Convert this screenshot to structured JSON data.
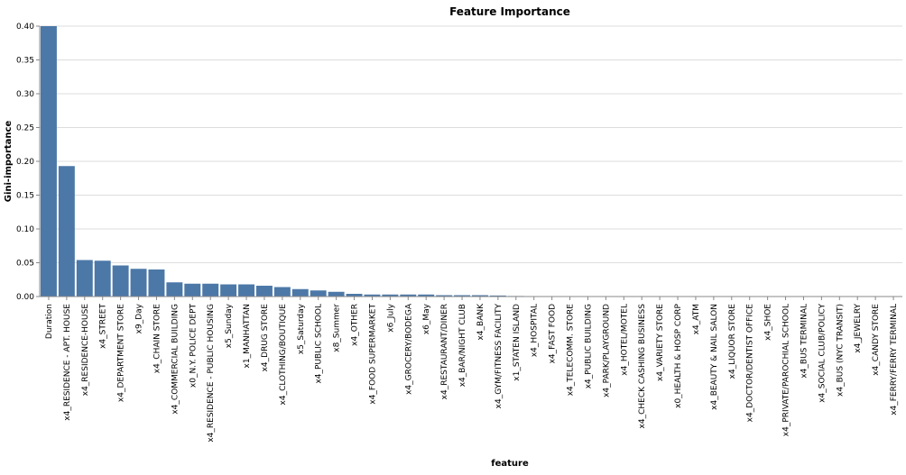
{
  "chart_data": {
    "type": "bar",
    "title": "Feature Importance",
    "xlabel": "feature",
    "ylabel": "Gini-importance",
    "ylim": [
      0,
      0.4
    ],
    "yticks": [
      "0.00",
      "0.05",
      "0.10",
      "0.15",
      "0.20",
      "0.25",
      "0.30",
      "0.35",
      "0.40"
    ],
    "grid": true,
    "bar_color": "#4c78a8",
    "categories": [
      "Duration",
      "x4_RESIDENCE - APT. HOUSE",
      "x4_RESIDENCE-HOUSE",
      "x4_STREET",
      "x4_DEPARTMENT STORE",
      "x9_Day",
      "x4_CHAIN STORE",
      "x4_COMMERCIAL BUILDING",
      "x0_N.Y. POLICE DEPT",
      "x4_RESIDENCE - PUBLIC HOUSING",
      "x5_Sunday",
      "x1_MANHATTAN",
      "x4_DRUG STORE",
      "x4_CLOTHING/BOUTIQUE",
      "x5_Saturday",
      "x4_PUBLIC SCHOOL",
      "x8_Summer",
      "x4_OTHER",
      "x4_FOOD SUPERMARKET",
      "x6_July",
      "x4_GROCERY/BODEGA",
      "x6_May",
      "x4_RESTAURANT/DINER",
      "x4_BAR/NIGHT CLUB",
      "x4_BANK",
      "x4_GYM/FITNESS FACILITY",
      "x1_STATEN ISLAND",
      "x4_HOSPITAL",
      "x4_FAST FOOD",
      "x4_TELECOMM. STORE",
      "x4_PUBLIC BUILDING",
      "x4_PARK/PLAYGROUND",
      "x4_HOTEL/MOTEL",
      "x4_CHECK CASHING BUSINESS",
      "x4_VARIETY STORE",
      "x0_HEALTH & HOSP CORP",
      "x4_ATM",
      "x4_BEAUTY & NAIL SALON",
      "x4_LIQUOR STORE",
      "x4_DOCTOR/DENTIST OFFICE",
      "x4_SHOE",
      "x4_PRIVATE/PAROCHIAL SCHOOL",
      "x4_BUS TERMINAL",
      "x4_SOCIAL CLUB/POLICY",
      "x4_BUS (NYC TRANSIT)",
      "x4_JEWELRY",
      "x4_CANDY STORE",
      "x4_FERRY/FERRY TERMINAL"
    ],
    "values": [
      0.4,
      0.193,
      0.054,
      0.053,
      0.046,
      0.041,
      0.04,
      0.021,
      0.019,
      0.019,
      0.018,
      0.018,
      0.016,
      0.014,
      0.011,
      0.009,
      0.007,
      0.004,
      0.003,
      0.003,
      0.003,
      0.003,
      0.002,
      0.002,
      0.002,
      0.0015,
      0.0008,
      0.0005,
      0.0004,
      0.0003,
      0.0003,
      0.0002,
      0.0002,
      0.0002,
      0.0002,
      0.0001,
      0.0001,
      0.0001,
      0.0001,
      0.0001,
      0.0001,
      0.0001,
      0.0001,
      0.0001,
      0.0001,
      0.0001,
      0.0001,
      0.0001
    ]
  }
}
